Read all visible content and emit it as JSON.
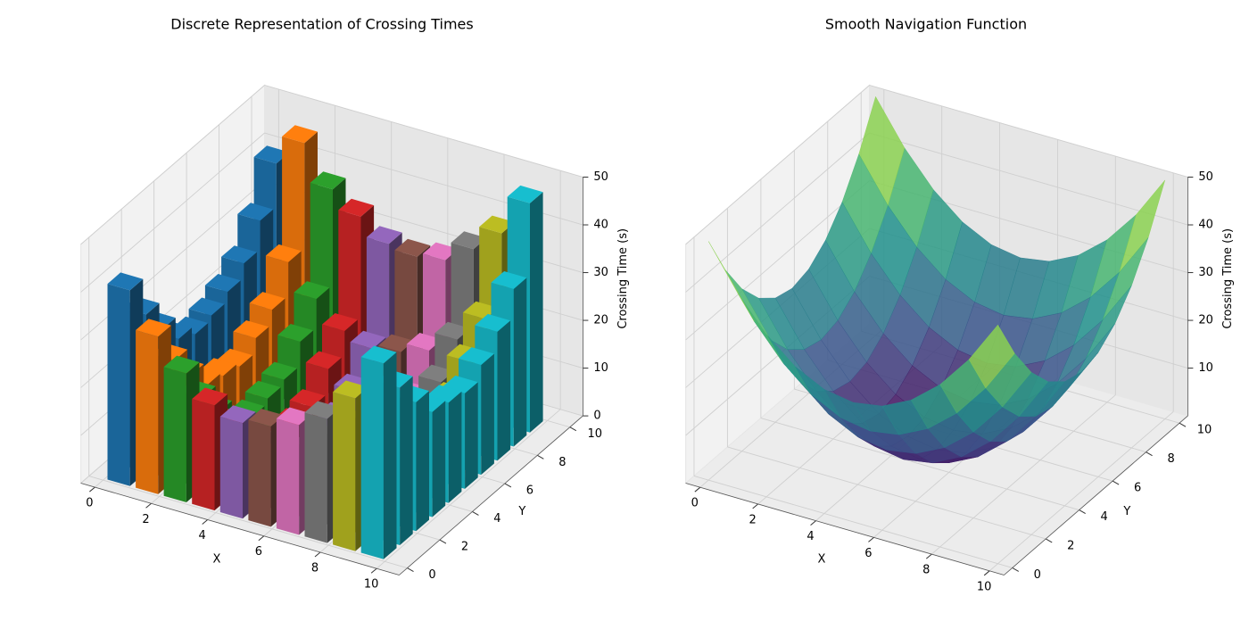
{
  "chart_data": [
    {
      "type": "bar3d",
      "title": "Discrete Representation of Crossing Times",
      "xlabel": "X",
      "ylabel": "Y",
      "zlabel": "Crossing Time (s)",
      "view": {
        "elev": 30,
        "azim": -60
      },
      "x": [
        0,
        1,
        2,
        3,
        4,
        5,
        6,
        7,
        8,
        9
      ],
      "y": [
        0,
        1,
        2,
        3,
        4,
        5,
        6,
        7,
        8,
        9
      ],
      "z": [
        [
          41,
          33,
          27,
          22,
          20,
          21,
          23,
          26,
          32,
          41
        ],
        [
          33,
          25,
          19,
          15,
          13,
          12,
          15,
          19,
          24,
          33
        ],
        [
          27,
          19,
          13,
          8,
          7,
          6,
          9,
          12,
          18,
          27
        ],
        [
          22,
          14,
          8,
          5,
          2,
          3,
          4,
          8,
          14,
          22
        ],
        [
          20,
          13,
          6,
          2,
          1,
          1,
          3,
          6,
          12,
          21
        ],
        [
          21,
          12,
          7,
          3,
          0,
          1,
          2,
          7,
          13,
          20
        ],
        [
          23,
          15,
          8,
          4,
          3,
          2,
          5,
          9,
          14,
          23
        ],
        [
          26,
          18,
          13,
          9,
          6,
          7,
          8,
          13,
          19,
          27
        ],
        [
          32,
          25,
          19,
          14,
          12,
          13,
          15,
          19,
          25,
          33
        ],
        [
          41,
          47,
          39,
          35,
          31,
          30,
          31,
          35,
          40,
          48
        ]
      ],
      "colors": [
        "#1f77b4",
        "#ff7f0e",
        "#2ca02c",
        "#d62728",
        "#9467bd",
        "#8c564b",
        "#e377c2",
        "#7f7f7f",
        "#bcbd22",
        "#17becf"
      ],
      "xlim": [
        -0.5,
        10.8
      ],
      "ylim": [
        -0.5,
        10.8
      ],
      "zlim": [
        0,
        50
      ],
      "xticks": [
        0,
        2,
        4,
        6,
        8,
        10
      ],
      "yticks": [
        0,
        2,
        4,
        6,
        8,
        10
      ],
      "zticks": [
        0,
        10,
        20,
        30,
        40,
        50
      ],
      "grid": true
    },
    {
      "type": "surface",
      "title": "Smooth Navigation Function",
      "xlabel": "X",
      "ylabel": "Y",
      "zlabel": "Crossing Time (s)",
      "view": {
        "elev": 30,
        "azim": -60
      },
      "cmap": "viridis",
      "x": [
        0,
        1,
        2,
        3,
        4,
        5,
        6,
        7,
        8,
        9,
        10
      ],
      "y": [
        0,
        1,
        2,
        3,
        4,
        5,
        6,
        7,
        8,
        9,
        10
      ],
      "z": [
        [
          50,
          41,
          34,
          29,
          26,
          25,
          26,
          29,
          34,
          41,
          50
        ],
        [
          41,
          32,
          25,
          20,
          17,
          16,
          17,
          20,
          25,
          32,
          41
        ],
        [
          34,
          25,
          18,
          13,
          10,
          9,
          10,
          13,
          18,
          25,
          34
        ],
        [
          29,
          20,
          13,
          8,
          5,
          4,
          5,
          8,
          13,
          20,
          29
        ],
        [
          26,
          17,
          10,
          5,
          2,
          1,
          2,
          5,
          10,
          17,
          26
        ],
        [
          25,
          16,
          9,
          4,
          1,
          0,
          1,
          4,
          9,
          16,
          25
        ],
        [
          26,
          17,
          10,
          5,
          2,
          1,
          2,
          5,
          10,
          17,
          26
        ],
        [
          29,
          20,
          13,
          8,
          5,
          4,
          5,
          8,
          13,
          20,
          29
        ],
        [
          34,
          25,
          18,
          13,
          10,
          9,
          10,
          13,
          18,
          25,
          34
        ],
        [
          41,
          32,
          25,
          20,
          17,
          16,
          17,
          20,
          25,
          32,
          41
        ],
        [
          50,
          41,
          34,
          29,
          26,
          25,
          26,
          29,
          34,
          41,
          50
        ]
      ],
      "xlim": [
        -0.5,
        10.5
      ],
      "ylim": [
        -0.5,
        10.5
      ],
      "zlim": [
        0,
        50
      ],
      "xticks": [
        0,
        2,
        4,
        6,
        8,
        10
      ],
      "yticks": [
        0,
        2,
        4,
        6,
        8,
        10
      ],
      "zticks": [
        10,
        20,
        30,
        40,
        50
      ],
      "grid": true
    }
  ]
}
